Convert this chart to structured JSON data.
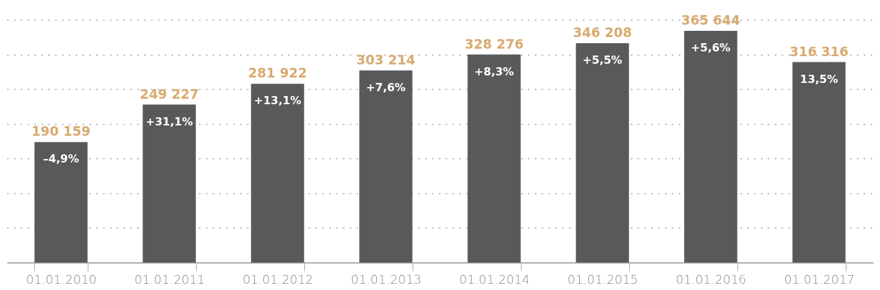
{
  "chart_data": {
    "type": "bar",
    "categories": [
      "01.01.2010",
      "01.01.2011",
      "01.01.2012",
      "01.01.2013",
      "01.01.2014",
      "01.01.2015",
      "01.01.2016",
      "01.01.2017"
    ],
    "values": [
      190159,
      249227,
      281922,
      303214,
      328276,
      346208,
      365644,
      316316
    ],
    "color": "#58595b",
    "data_labels": true,
    "ylim": [
      0,
      382900
    ],
    "yticks": [
      {
        "value": 54700,
        "label": null
      },
      {
        "value": 109400,
        "label": null
      },
      {
        "value": 164100,
        "label": null
      },
      {
        "value": 218800,
        "label": null
      },
      {
        "value": 273500,
        "label": null
      },
      {
        "value": 328200,
        "label": null
      },
      {
        "value": 382900,
        "label": null
      }
    ],
    "tick_labels": "x",
    "grid": "y",
    "annotations": [
      {
        "text": "–4,9%",
        "x": "01.01.2010",
        "y": 190159
      },
      {
        "text": "+31,1%",
        "x": "01.01.2011",
        "y": 249227
      },
      {
        "text": "+13,1%",
        "x": "01.01.2012",
        "y": 281922
      },
      {
        "text": "+7,6%",
        "x": "01.01.2013",
        "y": 303214
      },
      {
        "text": "+8,3%",
        "x": "01.01.2014",
        "y": 328276
      },
      {
        "text": "+5,5%",
        "x": "01.01.2015",
        "y": 346208
      },
      {
        "text": "+5,6%",
        "x": "01.01.2016",
        "y": 365644
      },
      {
        "text": "13,5%",
        "x": "01.01.2017",
        "y": 316316
      }
    ]
  }
}
